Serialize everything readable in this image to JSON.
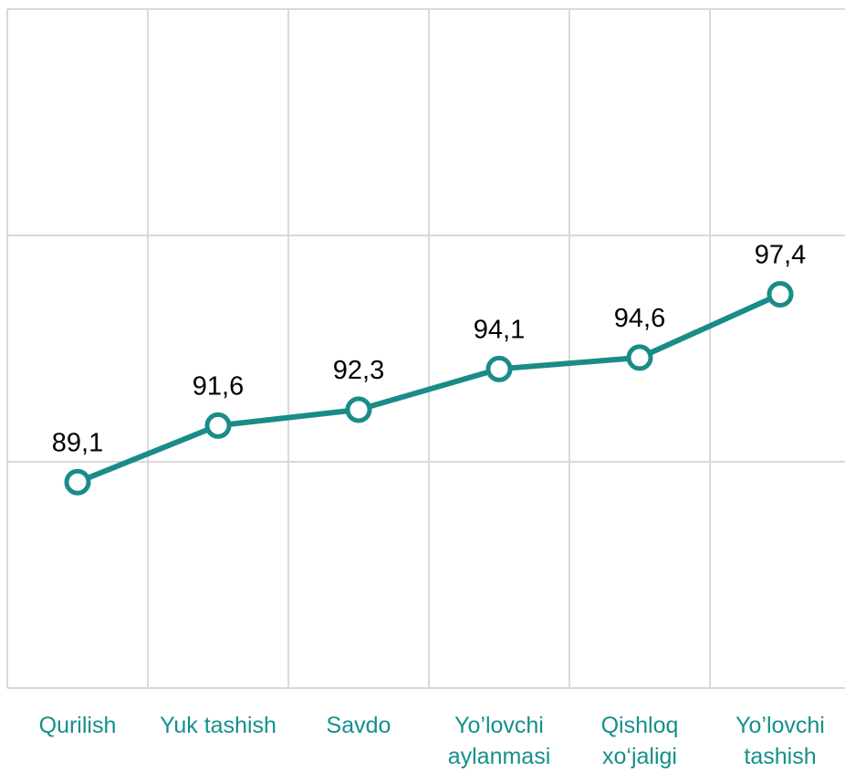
{
  "chart_data": {
    "type": "line",
    "categories": [
      "Qurilish",
      "Yuk tashish",
      "Savdo",
      "Yo’lovchi aylanmasi",
      "Qishloq xo‘jaligi",
      "Yo’lovchi tashish"
    ],
    "values": [
      89.1,
      91.6,
      92.3,
      94.1,
      94.6,
      97.4
    ],
    "value_labels": [
      "89,1",
      "91,6",
      "92,3",
      "94,1",
      "94,6",
      "97,4"
    ],
    "color": "#1a8c88",
    "ylim": [
      80,
      110
    ],
    "yticks": [
      80,
      90,
      100,
      110
    ],
    "grid": true
  }
}
